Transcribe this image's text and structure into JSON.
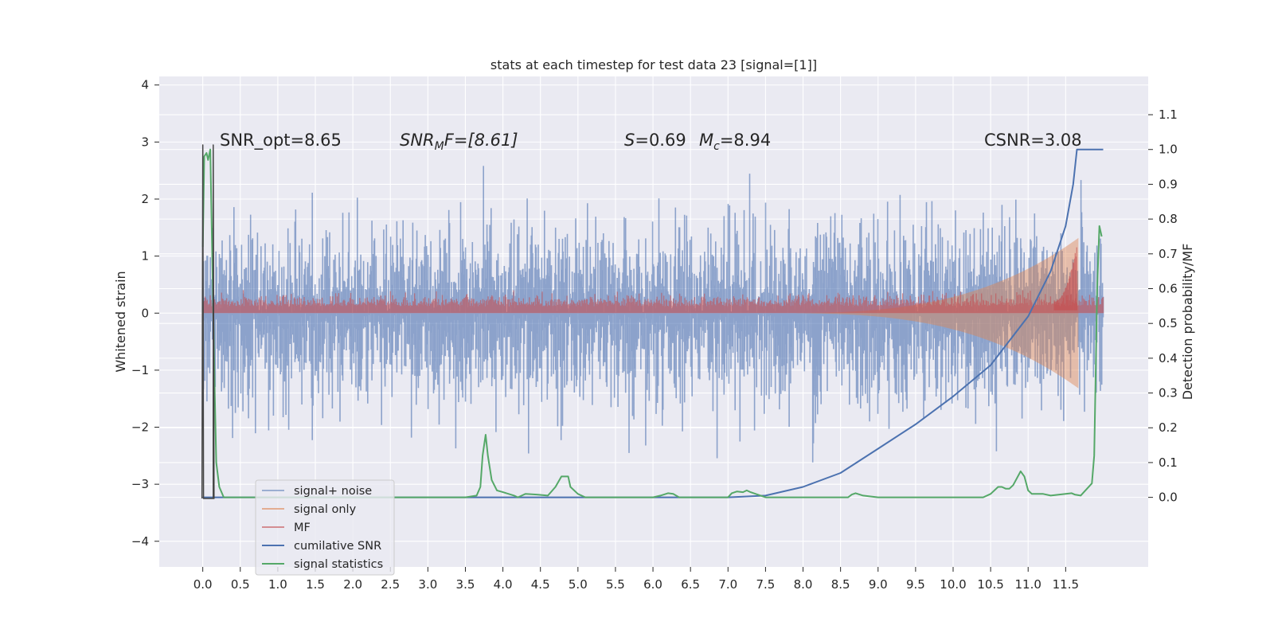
{
  "chart_data": {
    "type": "line",
    "title": "stats at each timestep for test data 23 [signal=[1]]",
    "ylabel_left": "Whitened strain",
    "ylabel_right": "Detection probability/MF",
    "x_ticks": [
      "0.0",
      "0.5",
      "1.0",
      "1.5",
      "2.0",
      "2.5",
      "3.0",
      "3.5",
      "4.0",
      "4.5",
      "5.0",
      "5.5",
      "6.0",
      "6.5",
      "7.0",
      "7.5",
      "8.0",
      "8.5",
      "9.0",
      "9.5",
      "10.0",
      "10.5",
      "11.0",
      "11.5"
    ],
    "xlim": [
      -0.58,
      12.6
    ],
    "ylim_left": [
      -4.45,
      4.15
    ],
    "ylim_right": [
      -0.2,
      1.21
    ],
    "y_ticks_left": [
      "4",
      "3",
      "2",
      "1",
      "0",
      "−1",
      "−2",
      "−3",
      "−4"
    ],
    "y_ticks_right": [
      "1.1",
      "1.0",
      "0.9",
      "0.8",
      "0.7",
      "0.6",
      "0.5",
      "0.4",
      "0.3",
      "0.2",
      "0.1",
      "0.0"
    ],
    "grid": true,
    "legend_position": "lower-left",
    "annotations": {
      "snr_opt": "SNR_opt=8.65",
      "snr_mf_sym": "SNR",
      "snr_mf_sub": "M",
      "snr_mf_rest": "F=[8.61]",
      "s_sym": "S",
      "s_rest": "=0.69",
      "mc_sym": "M",
      "mc_sub": "c",
      "mc_rest": "=8.94",
      "csnr": "CSNR=3.08"
    },
    "series": [
      {
        "name": "signal+ noise",
        "color": "#4c72b0",
        "opacity": 0.5,
        "axis": "left",
        "envelope_std": 1.1,
        "x_range": [
          0,
          12.0
        ]
      },
      {
        "name": "signal only",
        "color": "#dd8452",
        "opacity": 0.5,
        "axis": "left",
        "chirp_start": 7.5,
        "merger": 11.65,
        "peak_amplitude": 1.3
      },
      {
        "name": "MF",
        "color": "#c44e52",
        "opacity": 0.6,
        "axis": "left",
        "band": [
          0.0,
          0.35
        ]
      },
      {
        "name": "cumilative SNR",
        "color": "#4c72b0",
        "axis": "right",
        "x": [
          0,
          7,
          7.5,
          8,
          8.5,
          9,
          9.5,
          10,
          10.5,
          11,
          11.3,
          11.5,
          11.6,
          11.65,
          11.7,
          12.0
        ],
        "y": [
          0,
          0,
          0.005,
          0.03,
          0.07,
          0.14,
          0.21,
          0.29,
          0.38,
          0.52,
          0.65,
          0.78,
          0.9,
          1.0,
          1.0,
          1.0
        ]
      },
      {
        "name": "signal statistics",
        "color": "#55a868",
        "axis": "right",
        "x": [
          0,
          0.02,
          0.05,
          0.07,
          0.1,
          0.13,
          0.16,
          0.18,
          0.22,
          0.28,
          0.35,
          1,
          2,
          3,
          3.5,
          3.65,
          3.7,
          3.73,
          3.77,
          3.8,
          3.85,
          3.92,
          4,
          4.15,
          4.2,
          4.28,
          4.3,
          4.45,
          4.6,
          4.7,
          4.78,
          4.82,
          4.87,
          4.9,
          5.0,
          5.1,
          6.0,
          6.1,
          6.2,
          6.27,
          6.35,
          6.45,
          7.0,
          7.05,
          7.12,
          7.2,
          7.25,
          7.3,
          7.5,
          8.0,
          8.6,
          8.65,
          8.7,
          8.8,
          9.0,
          10.0,
          10.4,
          10.5,
          10.6,
          10.65,
          10.7,
          10.75,
          10.8,
          10.9,
          10.95,
          11.0,
          11.05,
          11.2,
          11.3,
          11.5,
          11.58,
          11.62,
          11.7,
          11.85,
          11.88,
          11.9,
          11.92,
          11.95,
          11.98
        ],
        "y": [
          0.72,
          0.98,
          0.99,
          0.97,
          1.0,
          0.65,
          0.3,
          0.1,
          0.03,
          0.0,
          0.0,
          0.0,
          0.0,
          0.0,
          0.0,
          0.005,
          0.03,
          0.12,
          0.18,
          0.12,
          0.05,
          0.02,
          0.015,
          0.005,
          0.0,
          0.008,
          0.01,
          0.008,
          0.005,
          0.03,
          0.06,
          0.06,
          0.06,
          0.03,
          0.01,
          0.0,
          0.0,
          0.005,
          0.012,
          0.01,
          0.0,
          0.0,
          0.0,
          0.012,
          0.017,
          0.015,
          0.02,
          0.015,
          0.0,
          0.0,
          0.0,
          0.008,
          0.012,
          0.005,
          0.0,
          0.0,
          0.0,
          0.01,
          0.03,
          0.03,
          0.025,
          0.025,
          0.035,
          0.075,
          0.06,
          0.02,
          0.01,
          0.01,
          0.005,
          0.01,
          0.012,
          0.008,
          0.005,
          0.04,
          0.12,
          0.35,
          0.6,
          0.78,
          0.75
        ]
      },
      {
        "name": "",
        "color": "#444444",
        "axis": "left",
        "x": [
          -0.01,
          0,
          0.01,
          0.15,
          0.14,
          0.14
        ],
        "y": [
          -3.25,
          2.95,
          -3.25,
          -3.25,
          2.95,
          -3.25
        ]
      }
    ]
  }
}
